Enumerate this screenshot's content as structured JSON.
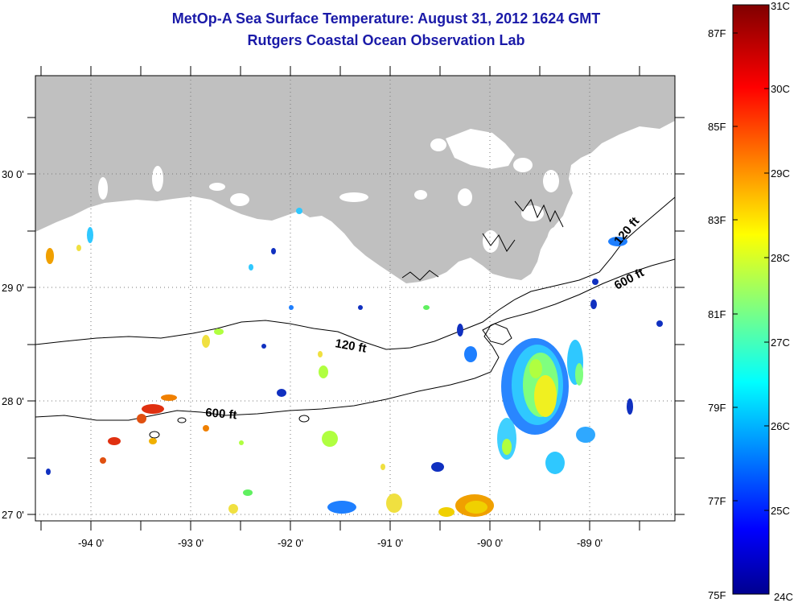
{
  "title_line1": "MetOp-A Sea Surface Temperature:  August 31, 2012 1624 GMT",
  "title_line2": "Rutgers Coastal Ocean Observation Lab",
  "map": {
    "lat_labels": [
      "30 0'",
      "29 0'",
      "28 0'",
      "27 0'"
    ],
    "lon_labels": [
      "-94 0'",
      "-93 0'",
      "-92 0'",
      "-91 0'",
      "-90 0'",
      "-89 0'"
    ],
    "contour_labels": [
      "120 ft",
      "600 ft",
      "120 ft",
      "600 ft"
    ],
    "land_color": "#c0c0c0",
    "no_data_color": "#ffffff"
  },
  "colorbar": {
    "fahrenheit_labels": [
      "87F",
      "85F",
      "83F",
      "81F",
      "79F",
      "77F",
      "75F"
    ],
    "celsius_labels": [
      "31C",
      "30C",
      "29C",
      "28C",
      "27C",
      "26C",
      "25C",
      "24C"
    ],
    "min_c": 24,
    "max_c": 31,
    "colormap": "jet"
  }
}
